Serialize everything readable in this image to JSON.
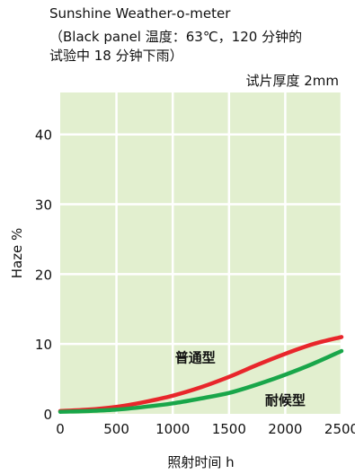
{
  "header": {
    "line1": "Sunshine Weather-o-meter",
    "line2": "（Black panel 温度：63℃，120 分钟的",
    "line3": "试验中 18 分钟下雨）",
    "thickness": "试片厚度 2mm"
  },
  "colors": {
    "plot_bg": "#e2efcf",
    "grid": "#ffffff",
    "standard": "#e8262b",
    "weather_resistant": "#19a64a"
  },
  "chart_data": {
    "type": "line",
    "title": "Sunshine Weather-o-meter",
    "xlabel": "照射时间  h",
    "ylabel": "Haze %",
    "xlim": [
      0,
      2500
    ],
    "ylim": [
      0,
      46
    ],
    "xticks": [
      0,
      500,
      1000,
      1500,
      2000,
      2500
    ],
    "yticks": [
      0,
      10,
      20,
      30,
      40
    ],
    "grid": true,
    "series": [
      {
        "name": "普通型",
        "color": "#e8262b",
        "x": [
          0,
          250,
          500,
          750,
          1000,
          1250,
          1500,
          1750,
          2000,
          2250,
          2500
        ],
        "y": [
          0.4,
          0.6,
          1.0,
          1.7,
          2.6,
          3.8,
          5.3,
          7.0,
          8.6,
          10.0,
          11.0
        ]
      },
      {
        "name": "耐候型",
        "color": "#19a64a",
        "x": [
          0,
          250,
          500,
          750,
          1000,
          1250,
          1500,
          1750,
          2000,
          2250,
          2500
        ],
        "y": [
          0.3,
          0.4,
          0.6,
          1.0,
          1.5,
          2.2,
          3.0,
          4.2,
          5.6,
          7.2,
          9.0
        ]
      }
    ]
  }
}
